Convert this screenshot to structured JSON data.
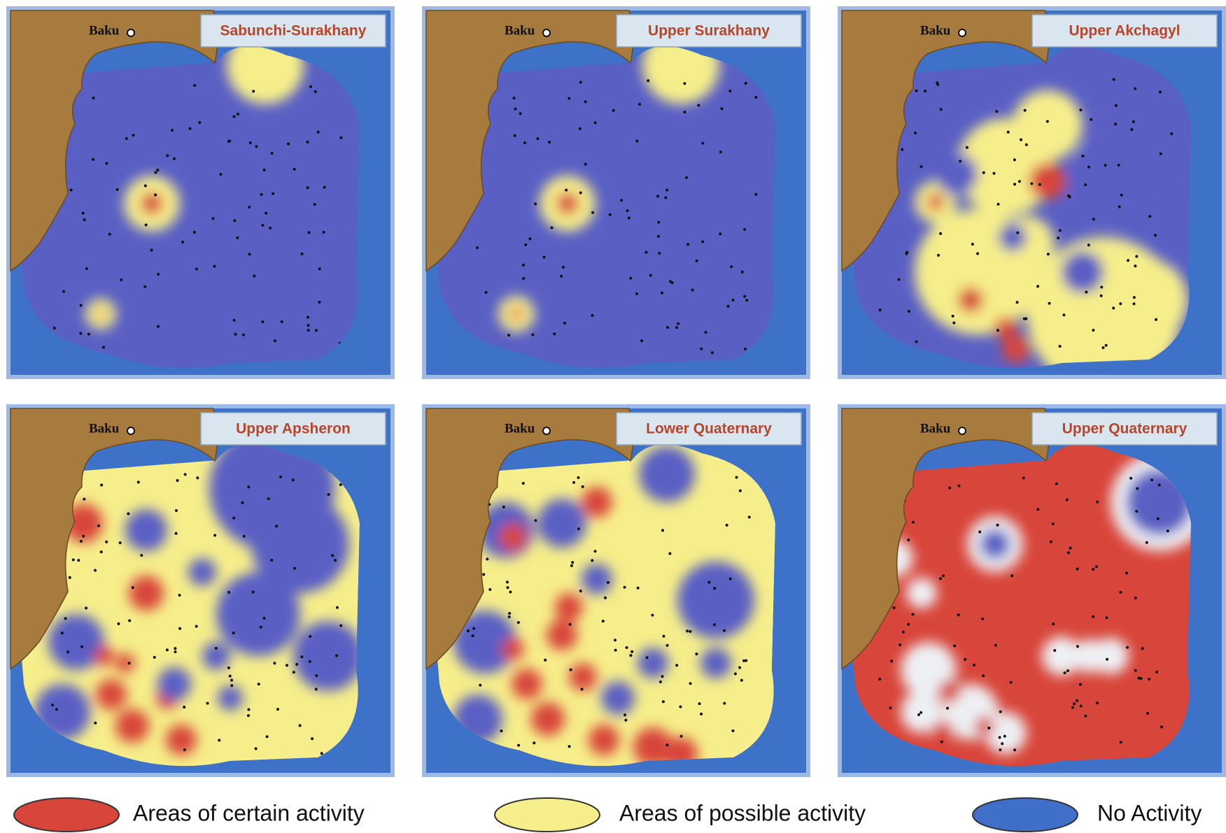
{
  "panels": [
    {
      "title": "Sabunchi-Surakhany",
      "city": "Baku"
    },
    {
      "title": "Upper Surakhany",
      "city": "Baku"
    },
    {
      "title": "Upper Akchagyl",
      "city": "Baku"
    },
    {
      "title": "Upper Apsheron",
      "city": "Baku"
    },
    {
      "title": "Lower Quaternary",
      "city": "Baku"
    },
    {
      "title": "Upper Quaternary",
      "city": "Baku"
    }
  ],
  "legend": [
    "Areas of certain activity",
    "Areas of possible activity",
    "No Activity"
  ]
}
